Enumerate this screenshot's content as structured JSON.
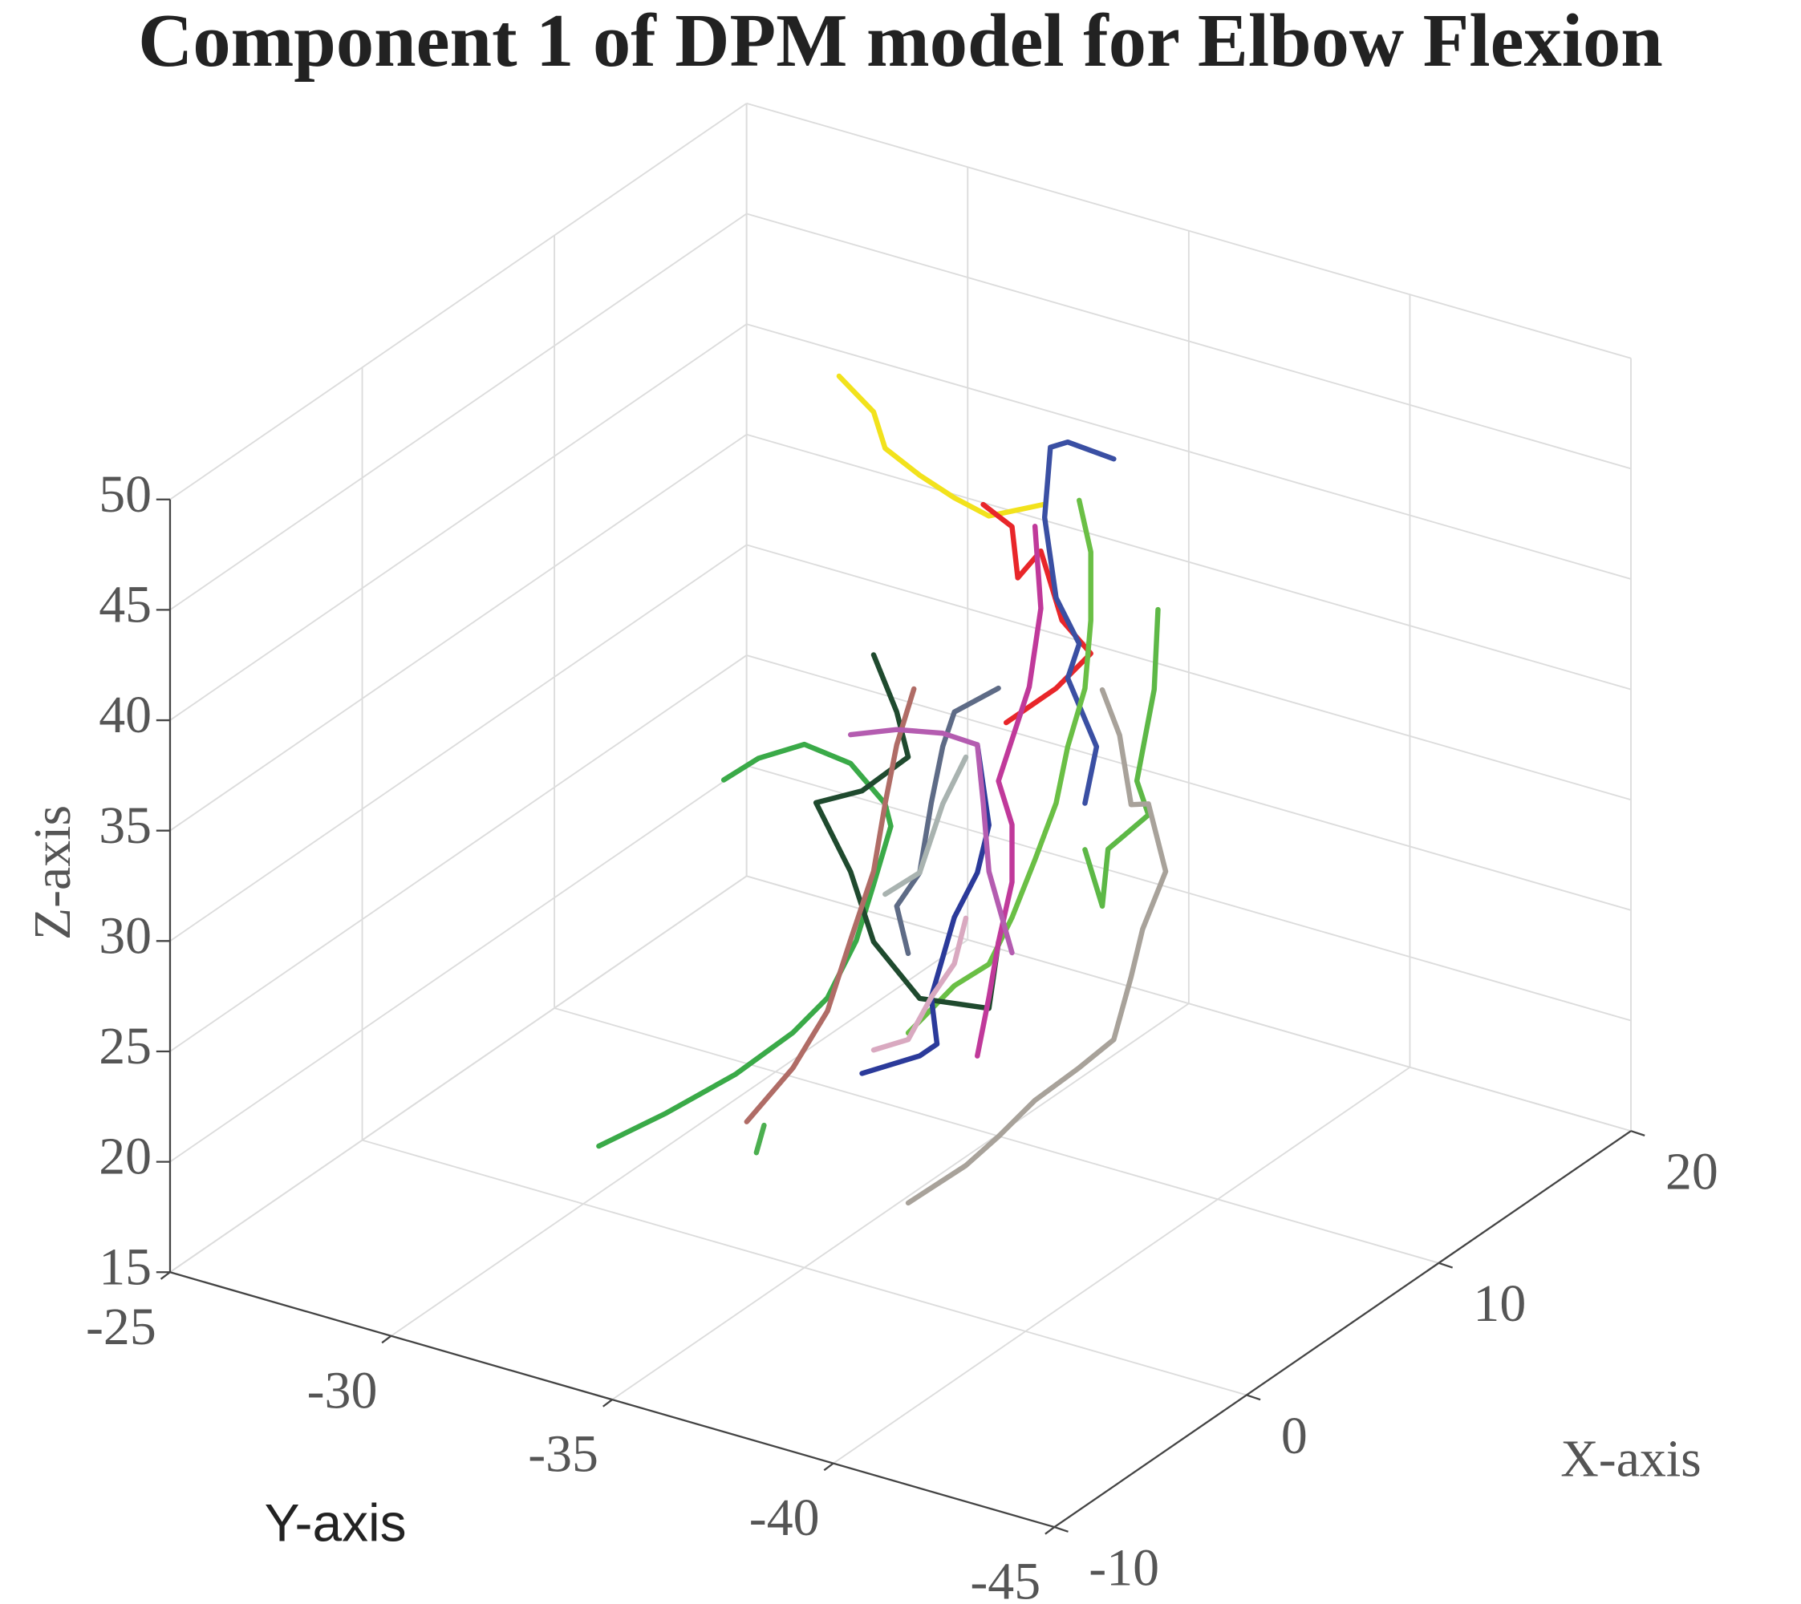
{
  "chart_data": {
    "type": "line3d",
    "title": "Component 1 of DPM model for Elbow Flexion",
    "xlabel": "X-axis",
    "ylabel": "Y-axis",
    "zlabel": "Z-axis",
    "xlim": [
      -10,
      20
    ],
    "ylim": [
      -25,
      -45
    ],
    "zlim": [
      15,
      50
    ],
    "xticks": [
      -10,
      0,
      10,
      20
    ],
    "yticks": [
      -25,
      -30,
      -35,
      -40,
      -45
    ],
    "zticks": [
      15,
      20,
      25,
      30,
      35,
      40,
      45,
      50
    ],
    "grid": true,
    "series": [
      {
        "color": "#3aaa48",
        "x": [
          -10.7,
          -7.2,
          -3.6,
          -0.6,
          1.2,
          2.7,
          3.6,
          4.5,
          4.2,
          2.4,
          0.0,
          -2.4,
          -4.2
        ],
        "y": [
          -35,
          -35,
          -35,
          -35,
          -35,
          -35,
          -35,
          -35,
          -35,
          -35,
          -35,
          -35,
          -35
        ],
        "z": [
          26.9,
          26.3,
          25.9,
          26.0,
          26.5,
          28.2,
          30.2,
          32.3,
          33.5,
          36.4,
          38.7,
          39.5,
          39.6
        ]
      },
      {
        "color": "#f2e21c",
        "x": [
          1.8,
          3.6,
          4.2,
          6.0,
          7.8,
          9.6,
          12.5
        ],
        "y": [
          -35,
          -35,
          -35,
          -35,
          -35,
          -35,
          -35
        ],
        "z": [
          54.3,
          51.6,
          49.6,
          47.3,
          45.2,
          43.3,
          42.1
        ]
      },
      {
        "color": "#e8262a",
        "x": [
          9.3,
          10.8,
          11.1,
          12.3,
          13.4,
          14.9,
          13.1,
          10.5
        ],
        "y": [
          -35,
          -35,
          -35,
          -35,
          -35,
          -35,
          -35,
          -35
        ],
        "z": [
          44.0,
          42.1,
          39.6,
          40.1,
          36.3,
          33.9,
          33.4,
          33.4
        ]
      },
      {
        "color": "#3a4fa3",
        "x": [
          16.1,
          13.7,
          12.8,
          12.5,
          13.1,
          14.3,
          13.7,
          15.2,
          14.6
        ],
        "y": [
          -35,
          -35,
          -35,
          -35,
          -35,
          -35,
          -35,
          -35,
          -35
        ],
        "z": [
          42.0,
          44.2,
          44.5,
          41.5,
          37.5,
          34.7,
          33.5,
          29.5,
          27.3
        ]
      },
      {
        "color": "#6abf45",
        "x": [
          14.3,
          14.9,
          14.9,
          14.6,
          13.7,
          13.1,
          12.0,
          10.8,
          9.6,
          7.8,
          5.4
        ],
        "y": [
          -35,
          -35,
          -35,
          -35,
          -35,
          -35,
          -35,
          -35,
          -35,
          -35,
          -35
        ],
        "z": [
          41.2,
          38.5,
          35.4,
          32.5,
          30.4,
          28.2,
          26.3,
          24.4,
          23.0,
          23.1,
          22.4
        ]
      },
      {
        "color": "#5db846",
        "x": [
          18.4,
          18.2,
          17.3,
          17.9,
          15.8,
          15.5,
          14.6
        ],
        "y": [
          -35,
          -35,
          -35,
          -35,
          -35,
          -35,
          -35
        ],
        "z": [
          33.8,
          30.3,
          26.7,
          24.8,
          24.5,
          22.1,
          25.2
        ]
      },
      {
        "color": "#a8a29a",
        "x": [
          5.4,
          8.4,
          10.1,
          12.0,
          14.3,
          16.1,
          17.0,
          17.6,
          18.8,
          17.9,
          17.0,
          16.4,
          15.5
        ],
        "y": [
          -35,
          -35,
          -35,
          -35,
          -35,
          -35,
          -35,
          -35,
          -35,
          -35,
          -35,
          -35,
          -35
        ],
        "z": [
          14.7,
          14.6,
          14.9,
          15.4,
          15.5,
          15.7,
          18.0,
          19.8,
          21.7,
          25.3,
          25.8,
          29.3,
          31.9
        ]
      },
      {
        "color": "#1f4a2e",
        "x": [
          3.6,
          4.8,
          5.4,
          3.0,
          0.6,
          2.4,
          3.6,
          6.0,
          9.6,
          10.1
        ],
        "y": [
          -35,
          -35,
          -35,
          -35,
          -35,
          -35,
          -35,
          -35,
          -35,
          -35
        ],
        "z": [
          40.6,
          37.3,
          34.9,
          34.8,
          35.7,
          31.5,
          27.6,
          23.6,
          21.0,
          23.7
        ]
      },
      {
        "color": "#b06c66",
        "x": [
          -3.0,
          -0.6,
          1.2,
          2.4,
          3.6,
          4.2,
          4.8,
          5.7
        ],
        "y": [
          -35,
          -35,
          -35,
          -35,
          -35,
          -35,
          -35,
          -35
        ],
        "z": [
          23.4,
          24.4,
          25.9,
          28.4,
          30.8,
          33.5,
          35.8,
          37.8
        ]
      },
      {
        "color": "#c0399a",
        "x": [
          9.0,
          9.6,
          10.1,
          10.8,
          10.8,
          10.1,
          11.7,
          12.3,
          12.0
        ],
        "y": [
          -35,
          -35,
          -35,
          -35,
          -35,
          -35,
          -35,
          -35,
          -35
        ],
        "z": [
          19.2,
          21.5,
          23.7,
          26.0,
          28.6,
          31.0,
          34.3,
          37.5,
          41.4
        ]
      },
      {
        "color": "#2b3a9a",
        "x": [
          3.0,
          6.0,
          6.9,
          6.6,
          7.8,
          9.0,
          9.6,
          9.0
        ],
        "y": [
          -35,
          -35,
          -35,
          -35,
          -35,
          -35,
          -35,
          -35
        ],
        "z": [
          22.0,
          21.0,
          21.0,
          23.3,
          26.2,
          27.5,
          29.3,
          33.3
        ]
      },
      {
        "color": "#5e6b86",
        "x": [
          5.4,
          4.8,
          6.0,
          6.6,
          7.2,
          7.8,
          10.1
        ],
        "y": [
          -35,
          -35,
          -35,
          -35,
          -35,
          -35,
          -35
        ],
        "z": [
          26.0,
          28.5,
          29.3,
          32.1,
          34.3,
          35.5,
          35.2
        ]
      },
      {
        "color": "#d9a9c0",
        "x": [
          3.6,
          5.4,
          6.6,
          7.8,
          8.4
        ],
        "y": [
          -35,
          -35,
          -35,
          -35,
          -35
        ],
        "z": [
          22.7,
          22.1,
          23.3,
          24.1,
          25.8
        ]
      },
      {
        "color": "#b45cb0",
        "x": [
          2.4,
          4.8,
          7.2,
          9.0,
          9.3,
          9.6,
          10.8
        ],
        "y": [
          -35,
          -35,
          -35,
          -35,
          -35,
          -35,
          -35
        ],
        "z": [
          37.7,
          36.5,
          34.9,
          33.3,
          30.5,
          27.2,
          22.8
        ]
      },
      {
        "color": "#a9b3b0",
        "x": [
          4.2,
          6.0,
          7.2,
          8.4
        ],
        "y": [
          -35,
          -35,
          -35,
          -35
        ],
        "z": [
          29.4,
          29.3,
          31.7,
          33.1
        ]
      },
      {
        "color": "#4caf50",
        "x": [
          -2.5,
          -2.1
        ],
        "y": [
          -35,
          -35
        ],
        "z": [
          21.7,
          22.7
        ]
      }
    ]
  }
}
